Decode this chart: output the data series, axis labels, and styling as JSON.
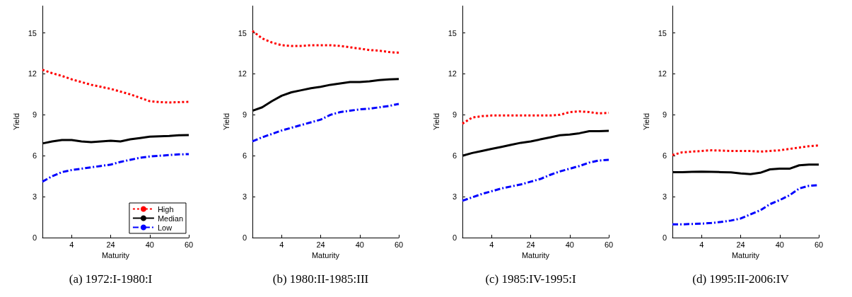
{
  "chart_data": [
    {
      "type": "line",
      "title": "(a) 1972:I-1980:I",
      "xlabel": "Maturity",
      "ylabel": "Yield",
      "categories": [
        null,
        null,
        null,
        "4",
        null,
        null,
        null,
        "24",
        null,
        null,
        null,
        "40",
        null,
        null,
        null,
        "60"
      ],
      "ylim": [
        0,
        17
      ],
      "yticks": [
        0,
        3,
        6,
        9,
        12,
        15
      ],
      "grid": false,
      "legend": "bottom right",
      "marker": "none",
      "series": [
        {
          "name": "High",
          "color": "#ff0000",
          "line_style": "dotted",
          "values": [
            12.3,
            12.05,
            11.85,
            11.6,
            11.4,
            11.2,
            11.05,
            10.9,
            10.7,
            10.5,
            10.25,
            10.0,
            9.93,
            9.9,
            9.93,
            9.95
          ]
        },
        {
          "name": "Median",
          "color": "#000000",
          "line_style": "solid",
          "values": [
            6.9,
            7.05,
            7.15,
            7.15,
            7.05,
            7.0,
            7.05,
            7.1,
            7.05,
            7.2,
            7.3,
            7.4,
            7.42,
            7.45,
            7.5,
            7.52
          ]
        },
        {
          "name": "Low",
          "color": "#0000ff",
          "line_style": "dashdot",
          "values": [
            4.1,
            4.5,
            4.8,
            4.95,
            5.05,
            5.15,
            5.25,
            5.35,
            5.55,
            5.7,
            5.85,
            5.95,
            6.0,
            6.05,
            6.1,
            6.12
          ]
        }
      ]
    },
    {
      "type": "line",
      "title": "(b) 1980:II-1985:III",
      "xlabel": "Maturity",
      "ylabel": "Yield",
      "categories": [
        null,
        null,
        null,
        "4",
        null,
        null,
        null,
        "24",
        null,
        null,
        null,
        "40",
        null,
        null,
        null,
        "60"
      ],
      "ylim": [
        0,
        17
      ],
      "yticks": [
        0,
        3,
        6,
        9,
        12,
        15
      ],
      "grid": false,
      "legend": false,
      "marker": "none",
      "series": [
        {
          "color": "#ff0000",
          "line_style": "dotted",
          "values": [
            15.15,
            14.6,
            14.3,
            14.1,
            14.05,
            14.05,
            14.1,
            14.1,
            14.1,
            14.05,
            13.95,
            13.85,
            13.75,
            13.7,
            13.6,
            13.55
          ]
        },
        {
          "color": "#000000",
          "line_style": "solid",
          "values": [
            9.3,
            9.55,
            10.0,
            10.4,
            10.65,
            10.8,
            10.95,
            11.05,
            11.2,
            11.3,
            11.4,
            11.4,
            11.45,
            11.55,
            11.6,
            11.62
          ]
        },
        {
          "color": "#0000ff",
          "line_style": "dashdot",
          "values": [
            7.05,
            7.35,
            7.6,
            7.85,
            8.05,
            8.25,
            8.45,
            8.65,
            9.0,
            9.2,
            9.3,
            9.4,
            9.45,
            9.55,
            9.65,
            9.8
          ]
        }
      ]
    },
    {
      "type": "line",
      "title": "(c) 1985:IV-1995:I",
      "xlabel": "Maturity",
      "ylabel": "Yield",
      "categories": [
        null,
        null,
        null,
        "4",
        null,
        null,
        null,
        "24",
        null,
        null,
        null,
        "40",
        null,
        null,
        null,
        "60"
      ],
      "ylim": [
        0,
        17
      ],
      "yticks": [
        0,
        3,
        6,
        9,
        12,
        15
      ],
      "grid": false,
      "legend": false,
      "marker": "none",
      "series": [
        {
          "color": "#ff0000",
          "line_style": "dotted",
          "values": [
            8.35,
            8.8,
            8.9,
            8.95,
            8.95,
            8.95,
            8.95,
            8.95,
            8.95,
            8.95,
            9.0,
            9.2,
            9.25,
            9.2,
            9.1,
            9.15
          ]
        },
        {
          "color": "#000000",
          "line_style": "solid",
          "values": [
            6.0,
            6.2,
            6.35,
            6.5,
            6.65,
            6.8,
            6.95,
            7.05,
            7.2,
            7.35,
            7.5,
            7.55,
            7.65,
            7.8,
            7.8,
            7.82
          ]
        },
        {
          "color": "#0000ff",
          "line_style": "dashdot",
          "values": [
            2.7,
            2.95,
            3.2,
            3.4,
            3.6,
            3.75,
            3.9,
            4.1,
            4.3,
            4.6,
            4.85,
            5.05,
            5.25,
            5.5,
            5.65,
            5.7
          ]
        }
      ]
    },
    {
      "type": "line",
      "title": "(d) 1995:II-2006:IV",
      "xlabel": "Maturity",
      "ylabel": "Yield",
      "categories": [
        null,
        null,
        null,
        "4",
        null,
        null,
        null,
        "24",
        null,
        null,
        null,
        "40",
        null,
        null,
        null,
        "60"
      ],
      "ylim": [
        0,
        17
      ],
      "yticks": [
        0,
        3,
        6,
        9,
        12,
        15
      ],
      "grid": false,
      "legend": false,
      "marker": "none",
      "series": [
        {
          "color": "#ff0000",
          "line_style": "dotted",
          "values": [
            6.05,
            6.25,
            6.3,
            6.35,
            6.4,
            6.38,
            6.35,
            6.35,
            6.35,
            6.3,
            6.35,
            6.4,
            6.5,
            6.6,
            6.7,
            6.75
          ]
        },
        {
          "color": "#000000",
          "line_style": "solid",
          "values": [
            4.8,
            4.8,
            4.82,
            4.83,
            4.82,
            4.8,
            4.78,
            4.7,
            4.65,
            4.75,
            5.0,
            5.05,
            5.05,
            5.3,
            5.35,
            5.35
          ]
        },
        {
          "color": "#0000ff",
          "line_style": "dashdot",
          "values": [
            0.97,
            0.97,
            1.0,
            1.02,
            1.07,
            1.15,
            1.25,
            1.4,
            1.7,
            2.0,
            2.45,
            2.75,
            3.1,
            3.6,
            3.8,
            3.85
          ]
        }
      ]
    }
  ]
}
